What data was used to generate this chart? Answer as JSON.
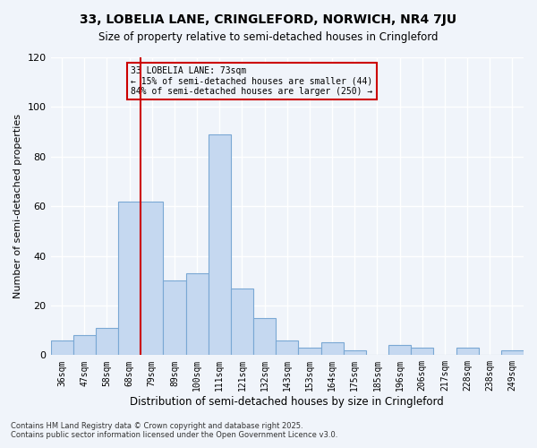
{
  "title": "33, LOBELIA LANE, CRINGLEFORD, NORWICH, NR4 7JU",
  "subtitle": "Size of property relative to semi-detached houses in Cringleford",
  "xlabel": "Distribution of semi-detached houses by size in Cringleford",
  "ylabel": "Number of semi-detached properties",
  "bin_labels": [
    "36sqm",
    "47sqm",
    "58sqm",
    "68sqm",
    "79sqm",
    "89sqm",
    "100sqm",
    "111sqm",
    "121sqm",
    "132sqm",
    "143sqm",
    "153sqm",
    "164sqm",
    "175sqm",
    "185sqm",
    "196sqm",
    "206sqm",
    "217sqm",
    "228sqm",
    "238sqm",
    "249sqm"
  ],
  "bar_heights": [
    6,
    8,
    11,
    62,
    62,
    30,
    33,
    89,
    27,
    15,
    6,
    3,
    5,
    2,
    0,
    4,
    3,
    0,
    3,
    0,
    2
  ],
  "bar_color": "#c5d8f0",
  "bar_edge_color": "#7aa8d4",
  "vline_x_coord": 3.5,
  "vline_color": "#cc0000",
  "property_label": "33 LOBELIA LANE: 73sqm",
  "smaller_pct": "15% of semi-detached houses are smaller (44)",
  "larger_pct": "84% of semi-detached houses are larger (250)",
  "ylim": [
    0,
    120
  ],
  "yticks": [
    0,
    20,
    40,
    60,
    80,
    100,
    120
  ],
  "footnote1": "Contains HM Land Registry data © Crown copyright and database right 2025.",
  "footnote2": "Contains public sector information licensed under the Open Government Licence v3.0.",
  "bg_color": "#f0f4fa",
  "grid_color": "#ffffff",
  "box_edge_color": "#cc0000"
}
